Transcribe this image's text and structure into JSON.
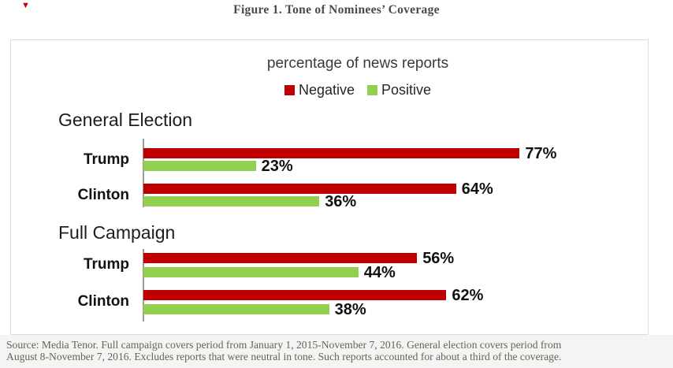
{
  "figure": {
    "title": "Figure 1. Tone of Nominees’ Coverage",
    "corner_mark": "▼"
  },
  "chart_data": {
    "type": "bar",
    "orientation": "horizontal",
    "title": "percentage of news reports",
    "unit": "%",
    "xlim": [
      0,
      100
    ],
    "grid": false,
    "legend_position": "top-center",
    "legend": [
      {
        "label": "Negative",
        "color": "#c00000"
      },
      {
        "label": "Positive",
        "color": "#92d050"
      }
    ],
    "sections": [
      {
        "label": "General Election",
        "rows": [
          {
            "label": "Trump",
            "negative": 77,
            "positive": 23
          },
          {
            "label": "Clinton",
            "negative": 64,
            "positive": 36
          }
        ]
      },
      {
        "label": "Full Campaign",
        "rows": [
          {
            "label": "Trump",
            "negative": 56,
            "positive": 44
          },
          {
            "label": "Clinton",
            "negative": 62,
            "positive": 38
          }
        ]
      }
    ]
  },
  "footer": {
    "source_lines": [
      "Source: Media Tenor. Full campaign covers period from January 1, 2015-November 7, 2016. General election covers period from",
      "August 8-November 7, 2016. Excludes reports that were neutral in tone. Such reports accounted for about a third of the coverage."
    ]
  },
  "colors": {
    "negative": "#c00000",
    "positive": "#92d050",
    "title_text": "#4a4a4a",
    "footer_background": "#f4f4f2"
  }
}
